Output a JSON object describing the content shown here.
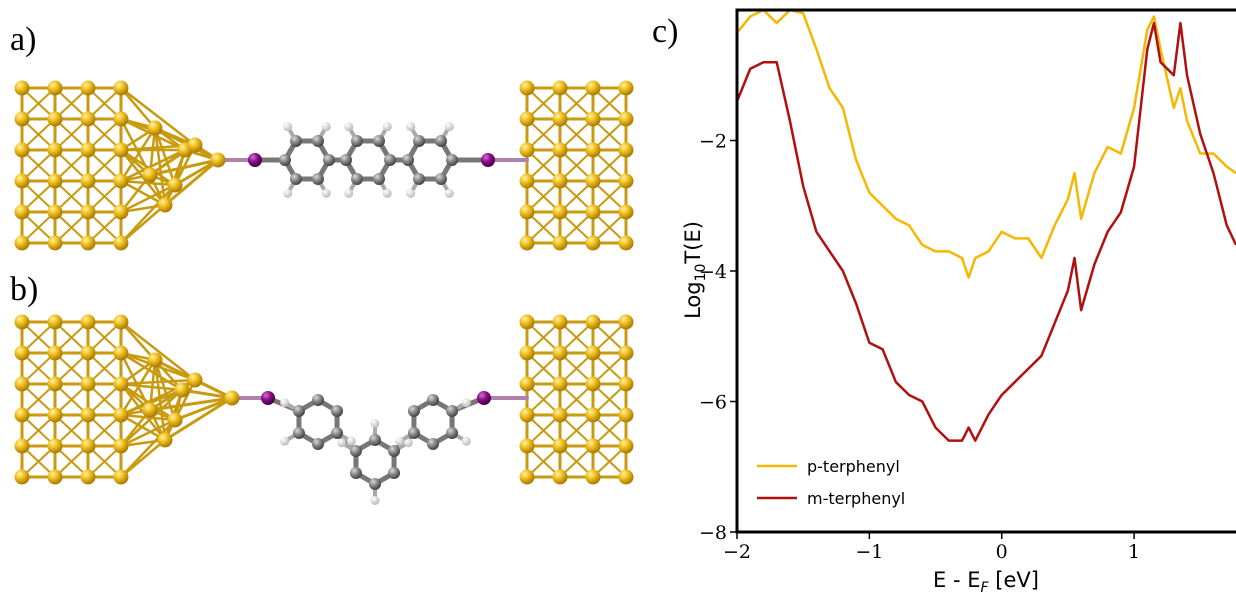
{
  "panels": {
    "a": "a)",
    "b": "b)",
    "c": "c)"
  },
  "chart_data": {
    "type": "line",
    "x_label": {
      "main": "E - E",
      "sub": "F",
      "tail": " [eV]"
    },
    "y_label": {
      "main": "Log",
      "sub": "10",
      "tail": "T(E)"
    },
    "x": [
      -2,
      -1.9,
      -1.8,
      -1.7,
      -1.6,
      -1.5,
      -1.4,
      -1.3,
      -1.2,
      -1.1,
      -1,
      -0.9,
      -0.8,
      -0.7,
      -0.6,
      -0.5,
      -0.4,
      -0.3,
      -0.25,
      -0.2,
      -0.1,
      0,
      0.1,
      0.2,
      0.3,
      0.4,
      0.5,
      0.55,
      0.6,
      0.7,
      0.8,
      0.9,
      1,
      1.1,
      1.15,
      1.2,
      1.3,
      1.35,
      1.4,
      1.5,
      1.6,
      1.7,
      1.77
    ],
    "series": [
      {
        "name": "p-terphenyl",
        "color": "#f5b800",
        "values": [
          -0.35,
          -0.1,
          0,
          -0.2,
          0,
          -0.05,
          -0.6,
          -1.2,
          -1.5,
          -2.3,
          -2.8,
          -3.0,
          -3.2,
          -3.3,
          -3.6,
          -3.7,
          -3.7,
          -3.8,
          -4.1,
          -3.8,
          -3.7,
          -3.4,
          -3.5,
          -3.5,
          -3.8,
          -3.3,
          -2.9,
          -2.5,
          -3.2,
          -2.5,
          -2.1,
          -2.2,
          -1.5,
          -0.3,
          -0.1,
          -0.6,
          -1.5,
          -1.2,
          -1.7,
          -2.2,
          -2.2,
          -2.4,
          -2.5
        ]
      },
      {
        "name": "m-terphenyl",
        "color": "#b20f0f",
        "values": [
          -1.4,
          -0.9,
          -0.8,
          -0.8,
          -1.7,
          -2.7,
          -3.4,
          -3.7,
          -4.0,
          -4.5,
          -5.1,
          -5.2,
          -5.7,
          -5.9,
          -6.0,
          -6.4,
          -6.6,
          -6.6,
          -6.4,
          -6.6,
          -6.2,
          -5.9,
          -5.7,
          -5.5,
          -5.3,
          -4.8,
          -4.3,
          -3.8,
          -4.6,
          -3.9,
          -3.4,
          -3.1,
          -2.4,
          -0.6,
          -0.2,
          -0.8,
          -1.0,
          -0.2,
          -1.0,
          -1.9,
          -2.5,
          -3.3,
          -3.6
        ]
      }
    ],
    "xlim": [
      -2,
      1.77
    ],
    "ylim": [
      -8,
      0
    ],
    "xticks": [
      {
        "value": -2,
        "label": "−2"
      },
      {
        "value": -1,
        "label": "−1"
      },
      0,
      1
    ],
    "yticks": [
      {
        "value": -2,
        "label": "−2"
      },
      {
        "value": -4,
        "label": "−4"
      },
      {
        "value": -6,
        "label": "−6"
      },
      {
        "value": -8,
        "label": "−8"
      }
    ],
    "legend": "lower left",
    "grid": false
  }
}
